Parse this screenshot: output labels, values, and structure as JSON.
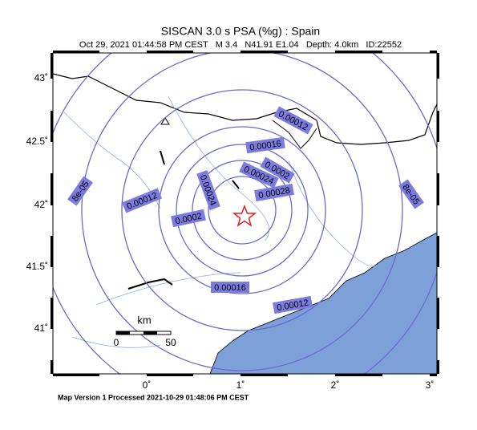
{
  "header": {
    "title": "SISCAN 3.0 s PSA (%g) : Spain",
    "subtitle": "Oct 29, 2021 01:44:58 PM CEST   M 3.4   N41.91 E1.04   Depth: 4.0km   ID:22552"
  },
  "map": {
    "lat_labels": [
      "43˚",
      "42.5˚",
      "42˚",
      "41.5˚",
      "41˚"
    ],
    "lon_labels": [
      "0˚",
      "1˚",
      "2˚",
      "3˚"
    ],
    "contour_labels": [
      "0.00012",
      "0.00016",
      "0.0002",
      "0.00024",
      "0.00028",
      "0.00012",
      "0.0002",
      "0.00024",
      "0.00016",
      "8e-05",
      "8e-05",
      "0.00012"
    ],
    "scale": {
      "unit": "km",
      "start": "0",
      "end": "50"
    }
  },
  "footer": "Map Version 1 Processed 2021-10-29 01:48:06 PM CEST"
}
